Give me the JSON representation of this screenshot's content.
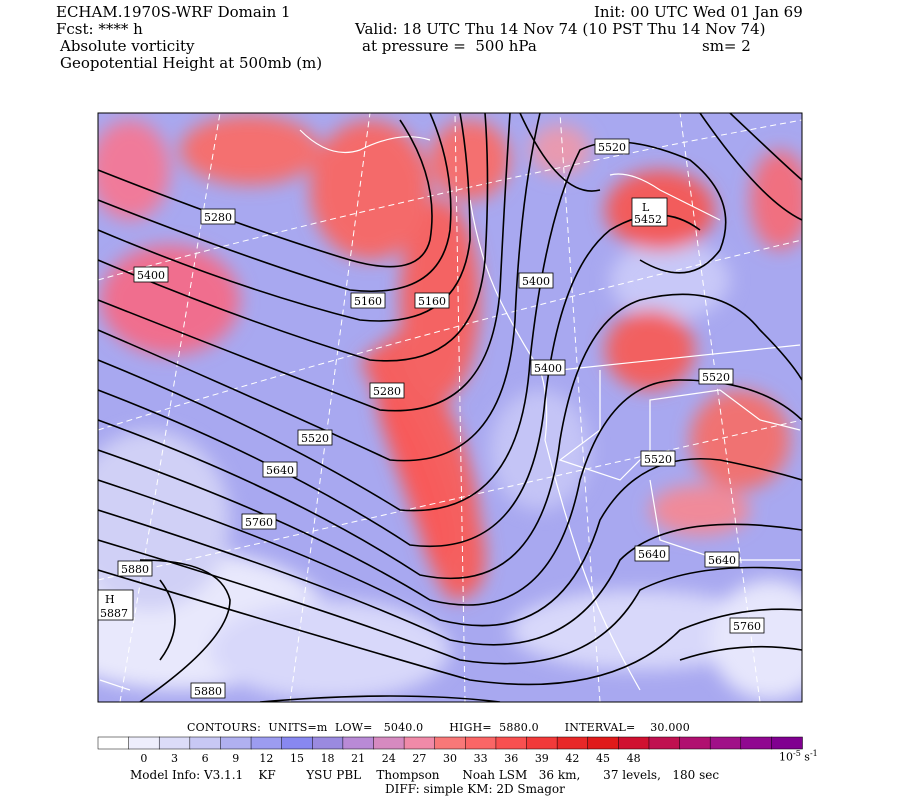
{
  "header": {
    "model_title": "ECHAM.1970S-WRF Domain 1",
    "init": "Init: 00 UTC Wed 01 Jan 69",
    "fcst": "Fcst: **** h",
    "valid": "Valid: 18 UTC Thu 14 Nov 74 (10 PST Thu 14 Nov 74)",
    "field_1": "Absolute vorticity",
    "pressure": "at pressure =  500 hPa",
    "smoothing": "sm= 2",
    "field_2": "Geopotential Height at 500mb (m)"
  },
  "contour_info": {
    "label": "CONTOURS:  UNITS=m  LOW=   5040.0       HIGH=  5880.0       INTERVAL=    30.000"
  },
  "colorbar": {
    "ticks": [
      "0",
      "3",
      "6",
      "9",
      "12",
      "15",
      "18",
      "21",
      "24",
      "27",
      "30",
      "33",
      "36",
      "39",
      "42",
      "45",
      "48"
    ],
    "units_base": "10",
    "units_exp": "-5",
    "units_suffix": " s",
    "units_exp2": "-1",
    "colors": [
      "#ffffff",
      "#eeeefc",
      "#dcdcf8",
      "#c8c8f4",
      "#b0b0f0",
      "#9c9cf0",
      "#8888f0",
      "#9a8ae0",
      "#b98ad6",
      "#d68ac0",
      "#f08aa8",
      "#f87878",
      "#fa6666",
      "#f85050",
      "#f23a3a",
      "#e82828",
      "#e01a1a",
      "#d01030",
      "#c01050",
      "#b01070",
      "#a01088",
      "#900890",
      "#800090"
    ]
  },
  "labels": {
    "high_symbol": "H",
    "high_value": "5887",
    "low_symbol": "L",
    "low_value": "5452",
    "contour_labels": [
      "5280",
      "5400",
      "5160",
      "5160",
      "5400",
      "5520",
      "5400",
      "5520",
      "5280",
      "5520",
      "5640",
      "5760",
      "5880",
      "5880",
      "5520",
      "5640",
      "5640",
      "5760"
    ]
  },
  "footer": {
    "line1": "Model Info: V3.1.1    KF        YSU PBL    Thompson      Noah LSM   36 km,      37 levels,   180 sec",
    "line2": "DIFF: simple KM: 2D Smagor"
  }
}
